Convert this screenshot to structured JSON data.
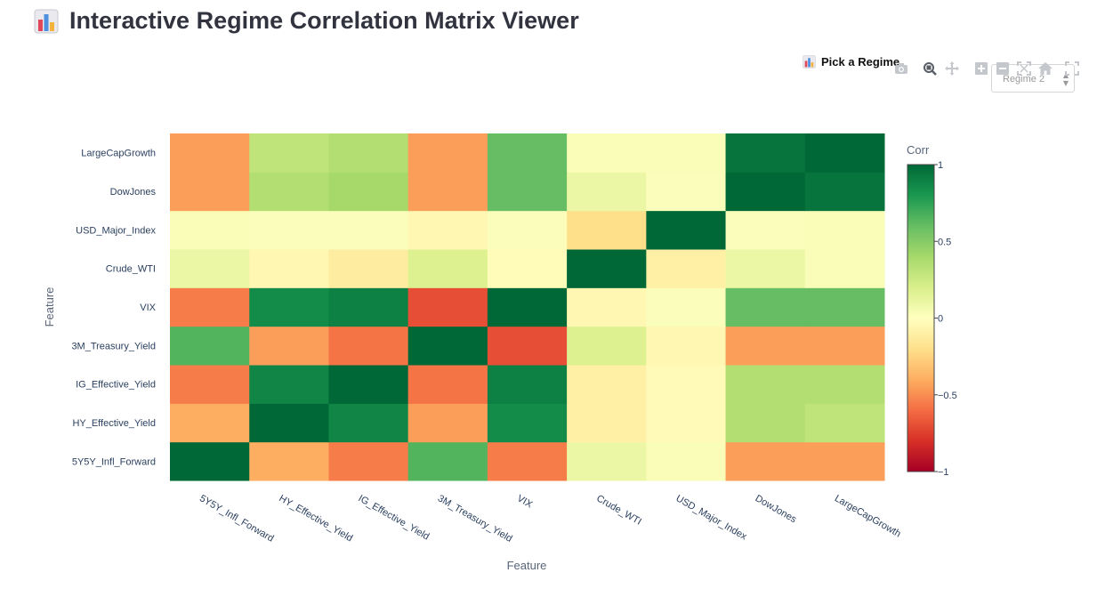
{
  "page": {
    "title": "Interactive Regime Correlation Matrix Viewer",
    "title_icon": "bar-chart-emoji-icon"
  },
  "controls": {
    "picker_label": "Pick a Regime",
    "picker_icon": "bar-chart-emoji-icon",
    "selected_regime": "Regime 2"
  },
  "modebar": [
    "camera-icon",
    "zoom-icon",
    "pan-icon",
    "zoom-in-icon",
    "zoom-out-icon",
    "autoscale-icon",
    "home-icon",
    "fullscreen-icon"
  ],
  "chart_data": {
    "type": "heatmap",
    "title": "",
    "xlabel": "Feature",
    "ylabel": "Feature",
    "x": [
      "5Y5Y_Infl_Forward",
      "HY_Effective_Yield",
      "IG_Effective_Yield",
      "3M_Treasury_Yield",
      "VIX",
      "Crude_WTI",
      "USD_Major_Index",
      "DowJones",
      "LargeCapGrowth"
    ],
    "y": [
      "5Y5Y_Infl_Forward",
      "HY_Effective_Yield",
      "IG_Effective_Yield",
      "3M_Treasury_Yield",
      "VIX",
      "Crude_WTI",
      "USD_Major_Index",
      "DowJones",
      "LargeCapGrowth"
    ],
    "z": [
      [
        1.0,
        -0.4,
        -0.55,
        0.65,
        -0.55,
        0.1,
        0.03,
        -0.45,
        -0.45
      ],
      [
        -0.4,
        1.0,
        0.88,
        -0.45,
        0.85,
        -0.1,
        -0.03,
        0.35,
        0.3
      ],
      [
        -0.55,
        0.88,
        1.0,
        -0.58,
        0.9,
        -0.1,
        -0.03,
        0.35,
        0.35
      ],
      [
        0.65,
        -0.45,
        -0.58,
        1.0,
        -0.7,
        0.18,
        -0.05,
        -0.45,
        -0.45
      ],
      [
        -0.55,
        0.85,
        0.9,
        -0.7,
        1.0,
        -0.05,
        0.02,
        0.6,
        0.6
      ],
      [
        0.1,
        -0.05,
        -0.12,
        0.18,
        -0.02,
        1.0,
        -0.1,
        0.1,
        0.03
      ],
      [
        0.03,
        0.02,
        0.02,
        -0.05,
        0.02,
        -0.2,
        1.0,
        0.02,
        0.03
      ],
      [
        -0.45,
        0.35,
        0.4,
        -0.45,
        0.6,
        0.1,
        0.02,
        1.0,
        0.95
      ],
      [
        -0.45,
        0.3,
        0.35,
        -0.45,
        0.6,
        0.03,
        0.03,
        0.95,
        1.0
      ]
    ],
    "zmin": -1,
    "zmax": 1,
    "colorscale": "RdYlGn",
    "colorbar": {
      "title": "Corr",
      "ticks": [
        "1",
        "0.5",
        "0",
        "−0.5",
        "−1"
      ],
      "tick_values": [
        1,
        0.5,
        0,
        -0.5,
        -1
      ]
    },
    "colors": {
      "axis_text": "#596579",
      "tick_text": "#2a3f5f"
    }
  }
}
